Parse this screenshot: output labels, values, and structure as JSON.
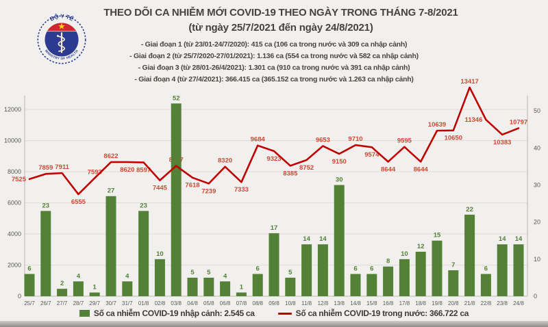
{
  "header": {
    "title": "THEO DÕI CA NHIỄM MỚI COVID-19 THEO NGÀY TRONG THÁNG 7-8/2021",
    "subtitle": "(từ ngày 25/7/2021 đến ngày 24/8/2021)",
    "bullets": [
      "- Giai đoạn 1 (từ 23/01-24/7/2020): 415 ca (106 ca trong nước và 309 ca nhập cảnh)",
      "- Giai đoạn 2 (từ 25/7/2020-27/01/2021): 1.136 ca (554 ca trong nước và 582 ca nhập cảnh)",
      "- Giai đoạn 3 (từ 28/01-26/4/2021): 1.301 ca (910 ca trong nước và 391 ca nhập cảnh)",
      "- Giai đoạn 4 (từ 27/4/2021): 366.415 ca (365.152 ca trong nước và 1.263 ca nhập cảnh)"
    ]
  },
  "logo": {
    "top_text": "BỘ Y TẾ",
    "bottom_text": "MINISTRY OF HEALTH"
  },
  "legend": {
    "bar_label": "Số ca nhiễm COVID-19 nhập cảnh: 2.545 ca",
    "line_label": "Số ca nhiễm COVID-19 trong nước: 366.722 ca"
  },
  "colors": {
    "bar": "#538135",
    "bar_label": "#538135",
    "line": "#c00000",
    "line_label": "#cd4a32",
    "grid": "#dedcd7",
    "axis": "#b9b6b1",
    "tick_label": "#595959",
    "background": "#f1f0ee",
    "title_text": "#47423d"
  },
  "chart_data": {
    "type": "bar+line",
    "title": "THEO DÕI CA NHIỄM MỚI COVID-19 THEO NGÀY TRONG THÁNG 7-8/2021",
    "xlabel": "",
    "ylabel": "",
    "grid": true,
    "legend_position": "bottom",
    "categories": [
      "25/7",
      "26/7",
      "27/7",
      "28/7",
      "29/7",
      "30/7",
      "31/7",
      "01/8",
      "02/8",
      "03/8",
      "04/8",
      "05/8",
      "06/8",
      "07/8",
      "08/8",
      "09/8",
      "10/8",
      "11/8",
      "12/8",
      "13/8",
      "14/8",
      "15/8",
      "16/8",
      "17/8",
      "18/8",
      "19/8",
      "20/8",
      "21/8",
      "22/8",
      "23/8",
      "24/8"
    ],
    "left_axis": {
      "ticks": [
        0,
        2000,
        4000,
        6000,
        8000,
        10000,
        12000
      ],
      "max": 13100
    },
    "right_axis": {
      "ticks": [
        0,
        10,
        20,
        30,
        40,
        50
      ],
      "max": 55
    },
    "series": [
      {
        "name": "Số ca nhiễm COVID-19 nhập cảnh",
        "type": "bar",
        "axis": "right",
        "values": [
          6,
          23,
          2,
          4,
          1,
          27,
          4,
          23,
          10,
          52,
          5,
          5,
          4,
          1,
          6,
          17,
          5,
          14,
          14,
          30,
          6,
          6,
          8,
          10,
          12,
          15,
          7,
          22,
          6,
          14,
          14
        ]
      },
      {
        "name": "Số ca nhiễm COVID-19 trong nước",
        "type": "line",
        "axis": "left",
        "values": [
          7525,
          7859,
          7911,
          6555,
          7593,
          8622,
          8620,
          8597,
          7445,
          8377,
          7618,
          7239,
          8320,
          7333,
          9684,
          9323,
          8385,
          8752,
          9653,
          9150,
          9710,
          9574,
          8644,
          9595,
          8644,
          10639,
          10650,
          13417,
          11346,
          10383,
          10797
        ],
        "label_positions": [
          "left",
          "above",
          "above",
          "below",
          "above",
          "above",
          "below",
          "below",
          "below",
          "above",
          "below",
          "below",
          "above",
          "below",
          "above",
          "below",
          "below",
          "below",
          "above",
          "below",
          "above",
          "below",
          "below",
          "above",
          "below",
          "above",
          "below",
          "above",
          "left",
          "below",
          "above"
        ]
      }
    ]
  }
}
